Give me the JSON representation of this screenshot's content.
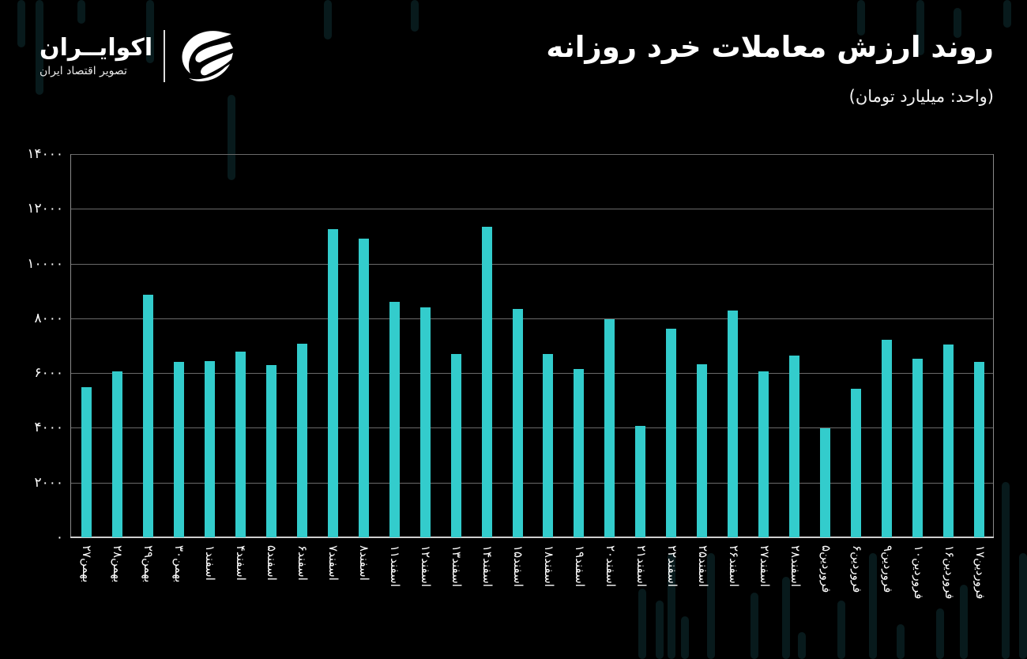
{
  "header": {
    "title": "روند ارزش معاملات خرد روزانه",
    "subtitle": "(واحد: میلیارد تومان)"
  },
  "brand": {
    "name": "اکوایــران",
    "tagline": "تصویر اقتصاد ایران",
    "icon": "ecoiran-logo-icon"
  },
  "colors": {
    "background": "#000000",
    "bar": "#33cccc",
    "grid": "#6a6a6a",
    "text": "#ffffff"
  },
  "axis": {
    "y_ticks": [
      "۰",
      "۲۰۰۰",
      "۴۰۰۰",
      "۶۰۰۰",
      "۸۰۰۰",
      "۱۰۰۰۰",
      "۱۲۰۰۰",
      "۱۴۰۰۰"
    ]
  },
  "chart_data": {
    "type": "bar",
    "title": "روند ارزش معاملات خرد روزانه",
    "subtitle": "(واحد: میلیارد تومان)",
    "xlabel": "",
    "ylabel": "میلیارد تومان",
    "ylim": [
      0,
      14000
    ],
    "yticks": [
      0,
      2000,
      4000,
      6000,
      8000,
      10000,
      12000,
      14000
    ],
    "grid": true,
    "legend": null,
    "categories": [
      "بهمن۲۷",
      "بهمن۲۸",
      "بهمن۲۹",
      "بهمن۳۰",
      "اسفند۱",
      "اسفند۴",
      "اسفند۵",
      "اسفند۶",
      "اسفند۷",
      "اسفند۸",
      "اسفند۱۱",
      "اسفند۱۲",
      "اسفند۱۳",
      "اسفند۱۴",
      "اسفند۱۵",
      "اسفند۱۸",
      "اسفند۱۹",
      "اسفند۲۰",
      "اسفند۲۱",
      "اسفند۲۲",
      "اسفند۲۵",
      "اسفند۲۶",
      "اسفند۲۷",
      "اسفند۲۸",
      "فروردین۵",
      "فروردین۶",
      "فروردین۹",
      "فروردین۱۰",
      "فروردین۱۶",
      "فروردین۱۷"
    ],
    "values": [
      5480,
      6060,
      8850,
      6410,
      6440,
      6780,
      6290,
      7070,
      11260,
      10910,
      8600,
      8400,
      6700,
      11350,
      8340,
      6700,
      6150,
      7970,
      4070,
      7620,
      6320,
      8290,
      6060,
      6640,
      3980,
      5430,
      7220,
      6520,
      7040,
      6410
    ]
  }
}
